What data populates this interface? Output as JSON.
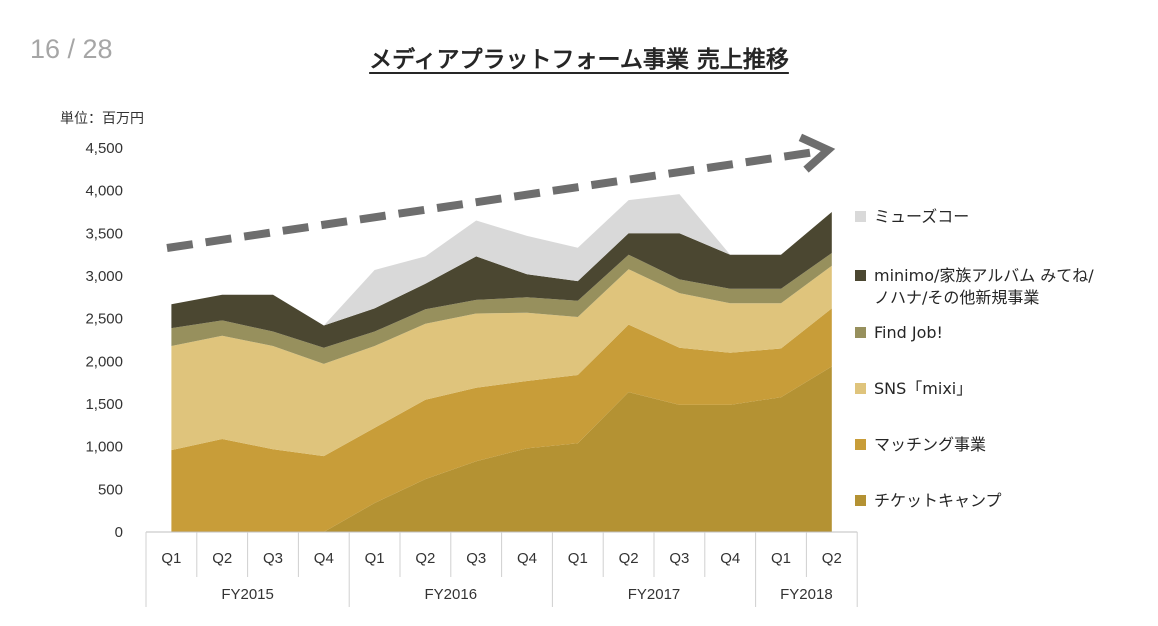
{
  "page": {
    "number": "16 / 28"
  },
  "title": "メディアプラットフォーム事業 売上推移",
  "unit_label": "単位：百万円",
  "chart_data": {
    "type": "area",
    "stacked": true,
    "title": "メディアプラットフォーム事業 売上推移",
    "unit": "単位：百万円",
    "ylim": [
      0,
      4500
    ],
    "yticks": [
      0,
      500,
      1000,
      1500,
      2000,
      2500,
      3000,
      3500,
      4000,
      4500
    ],
    "ytick_labels": [
      "0",
      "500",
      "1,000",
      "1,500",
      "2,000",
      "2,500",
      "3,000",
      "3,500",
      "4,000",
      "4,500"
    ],
    "categories": [
      "Q1",
      "Q2",
      "Q3",
      "Q4",
      "Q1",
      "Q2",
      "Q3",
      "Q4",
      "Q1",
      "Q2",
      "Q3",
      "Q4",
      "Q1",
      "Q2"
    ],
    "groups": [
      {
        "label": "FY2015",
        "count": 4
      },
      {
        "label": "FY2016",
        "count": 4
      },
      {
        "label": "FY2017",
        "count": 4
      },
      {
        "label": "FY2018",
        "count": 2
      }
    ],
    "series": [
      {
        "name": "チケットキャンプ",
        "color": "#b49233",
        "values": [
          0,
          0,
          0,
          0,
          340,
          620,
          830,
          980,
          1040,
          1640,
          1490,
          1490,
          1580,
          1940
        ]
      },
      {
        "name": "マッチング事業",
        "color": "#c89d39",
        "values": [
          960,
          1090,
          970,
          890,
          880,
          930,
          860,
          790,
          800,
          790,
          670,
          610,
          570,
          680
        ]
      },
      {
        "name": "SNS「mixi」",
        "color": "#dfc47c",
        "values": [
          1220,
          1210,
          1210,
          1080,
          960,
          890,
          870,
          800,
          680,
          650,
          640,
          580,
          530,
          500
        ]
      },
      {
        "name": "Find Job!",
        "color": "#97905d",
        "values": [
          210,
          180,
          170,
          190,
          170,
          170,
          160,
          180,
          190,
          170,
          160,
          170,
          170,
          150
        ]
      },
      {
        "name": "minimo/家族アルバム みてね/\nノハナ/その他新規事業",
        "color": "#4b4731",
        "values": [
          280,
          300,
          430,
          260,
          270,
          300,
          510,
          270,
          230,
          250,
          540,
          400,
          400,
          480
        ]
      },
      {
        "name": "ミューズコー",
        "color": "#d9d9d9",
        "values": [
          0,
          0,
          0,
          0,
          450,
          320,
          420,
          450,
          390,
          390,
          460,
          0,
          0,
          0
        ]
      }
    ],
    "legend_order": [
      5,
      4,
      3,
      2,
      1,
      0
    ],
    "trend_arrow": true
  }
}
